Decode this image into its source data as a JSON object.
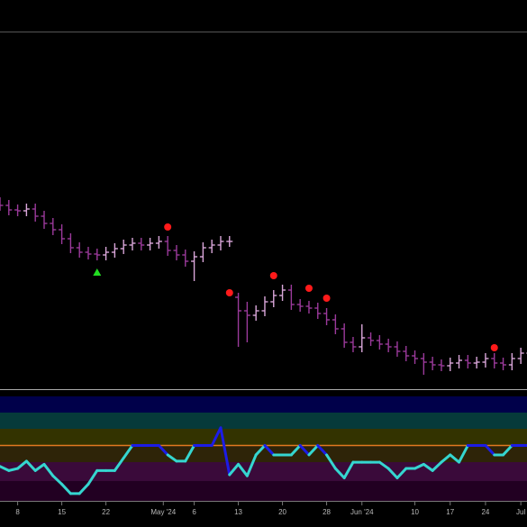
{
  "chart_data": {
    "type": "ohlc",
    "x": [
      -2,
      -1,
      0,
      1,
      2,
      3,
      4,
      5,
      6,
      7,
      8,
      9,
      10,
      11,
      12,
      13,
      14,
      15,
      16,
      17,
      18,
      19,
      20,
      21,
      22,
      23,
      24,
      25,
      26,
      27,
      28,
      29,
      30,
      31,
      32,
      33,
      34,
      35,
      36,
      37,
      38,
      39,
      40,
      41,
      42,
      43,
      44,
      45,
      46,
      47,
      48,
      49,
      50,
      51,
      52,
      53,
      54,
      55,
      56,
      57,
      58
    ],
    "open": [
      205,
      202,
      197,
      196,
      198,
      190,
      182,
      175,
      165,
      155,
      150,
      148,
      147,
      150,
      154,
      158,
      160,
      158,
      160,
      162,
      152,
      147,
      140,
      145,
      155,
      158,
      162,
      100,
      85,
      80,
      85,
      95,
      102,
      108,
      92,
      90,
      88,
      82,
      75,
      65,
      50,
      45,
      55,
      52,
      48,
      45,
      40,
      35,
      32,
      28,
      25,
      24,
      27,
      30,
      27,
      28,
      32,
      27,
      25,
      32,
      38
    ],
    "high": [
      211,
      208,
      203,
      204,
      204,
      196,
      188,
      181,
      171,
      161,
      156,
      154,
      156,
      160,
      164,
      166,
      166,
      166,
      168,
      168,
      158,
      153,
      151,
      161,
      164,
      168,
      168,
      105,
      95,
      91,
      101,
      108,
      114,
      114,
      98,
      96,
      94,
      88,
      81,
      71,
      56,
      70,
      61,
      58,
      54,
      51,
      46,
      41,
      38,
      34,
      31,
      33,
      36,
      36,
      34,
      38,
      38,
      33,
      38,
      44,
      48
    ],
    "low": [
      196,
      191,
      190,
      190,
      184,
      176,
      169,
      159,
      149,
      144,
      142,
      141,
      141,
      144,
      148,
      152,
      152,
      152,
      154,
      146,
      141,
      134,
      118,
      139,
      149,
      152,
      156,
      45,
      50,
      74,
      79,
      89,
      96,
      86,
      84,
      82,
      76,
      69,
      59,
      44,
      39,
      39,
      46,
      42,
      39,
      34,
      29,
      26,
      14,
      19,
      18,
      18,
      21,
      21,
      21,
      22,
      21,
      19,
      19,
      26,
      32
    ],
    "close": [
      202,
      197,
      196,
      198,
      190,
      182,
      175,
      165,
      155,
      150,
      148,
      147,
      150,
      154,
      158,
      160,
      158,
      160,
      162,
      152,
      147,
      140,
      145,
      155,
      158,
      162,
      162,
      85,
      80,
      85,
      95,
      102,
      108,
      92,
      90,
      88,
      82,
      75,
      65,
      50,
      45,
      55,
      52,
      48,
      45,
      40,
      35,
      32,
      28,
      25,
      24,
      27,
      30,
      27,
      28,
      32,
      27,
      25,
      32,
      38,
      42
    ],
    "up_color": "#d9a6d9",
    "down_color": "#9b3a9b",
    "xlim": [
      -2,
      57.7
    ],
    "ylim": [
      -2,
      395
    ],
    "xticks": [
      {
        "value": 0,
        "label": "8"
      },
      {
        "value": 5,
        "label": "15"
      },
      {
        "value": 10,
        "label": "22"
      },
      {
        "value": 16.5,
        "label": "May '24"
      },
      {
        "value": 20,
        "label": "6"
      },
      {
        "value": 25,
        "label": "13"
      },
      {
        "value": 30,
        "label": "20"
      },
      {
        "value": 35,
        "label": "28"
      },
      {
        "value": 39,
        "label": "Jun '24"
      },
      {
        "value": 45,
        "label": "10"
      },
      {
        "value": 49,
        "label": "17"
      },
      {
        "value": 53,
        "label": "24"
      },
      {
        "value": 57,
        "label": "Jul"
      }
    ],
    "sell_markers": {
      "x": [
        17,
        24,
        29,
        33,
        35,
        54
      ],
      "y": [
        178,
        105,
        124,
        110,
        99,
        44
      ],
      "color": "#ff1a1a"
    },
    "buy_markers": {
      "x": [
        9
      ],
      "y": [
        128
      ],
      "color": "#22dd22"
    },
    "indicator": {
      "type": "line",
      "values": [
        33,
        29,
        31,
        38,
        29,
        35,
        24,
        16,
        7,
        7,
        16,
        29,
        29,
        29,
        41,
        53,
        53,
        53,
        53,
        44,
        38,
        38,
        53,
        53,
        53,
        70,
        25,
        35,
        24,
        44,
        53,
        44,
        44,
        44,
        53,
        44,
        53,
        44,
        31,
        22,
        37,
        37,
        37,
        37,
        31,
        22,
        31,
        31,
        35,
        29,
        37,
        44,
        37,
        53,
        53,
        53,
        44,
        44,
        53,
        53,
        53
      ],
      "ylim": [
        0,
        100
      ],
      "level": 53,
      "level_color": "#e07820",
      "low_color": "#35d6d0",
      "high_color": "#1c1ce6"
    }
  }
}
